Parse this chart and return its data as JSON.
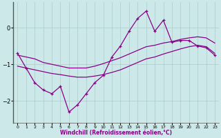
{
  "xlabel": "Windchill (Refroidissement éolien,°C)",
  "background_color": "#cce8e8",
  "line_color": "#880088",
  "grid_color": "#aacccc",
  "x_hours": [
    0,
    1,
    2,
    3,
    4,
    5,
    6,
    7,
    8,
    9,
    10,
    11,
    12,
    13,
    14,
    15,
    16,
    17,
    18,
    19,
    20,
    21,
    22,
    23
  ],
  "windchill_values": [
    -0.7,
    -1.1,
    -1.5,
    -1.7,
    -1.8,
    -1.6,
    -2.3,
    -2.1,
    -1.8,
    -1.5,
    -1.3,
    -0.8,
    -0.5,
    -0.1,
    0.25,
    0.45,
    -0.1,
    0.2,
    -0.4,
    -0.35,
    -0.35,
    -0.5,
    -0.55,
    -0.75
  ],
  "line1_values": [
    -0.75,
    -0.8,
    -0.85,
    -0.95,
    -1.0,
    -1.05,
    -1.1,
    -1.1,
    -1.1,
    -1.05,
    -0.98,
    -0.9,
    -0.82,
    -0.72,
    -0.62,
    -0.52,
    -0.48,
    -0.42,
    -0.38,
    -0.32,
    -0.28,
    -0.25,
    -0.28,
    -0.42
  ],
  "line2_values": [
    -1.05,
    -1.1,
    -1.15,
    -1.2,
    -1.25,
    -1.28,
    -1.32,
    -1.35,
    -1.35,
    -1.32,
    -1.28,
    -1.22,
    -1.15,
    -1.05,
    -0.95,
    -0.85,
    -0.8,
    -0.72,
    -0.65,
    -0.58,
    -0.52,
    -0.48,
    -0.52,
    -0.7
  ],
  "ylim": [
    -2.6,
    0.7
  ],
  "xlim": [
    -0.5,
    23.5
  ],
  "yticks": [
    0,
    -1,
    -2
  ],
  "xticks": [
    0,
    1,
    2,
    3,
    4,
    5,
    6,
    7,
    8,
    9,
    10,
    11,
    12,
    13,
    14,
    15,
    16,
    17,
    18,
    19,
    20,
    21,
    22,
    23
  ]
}
